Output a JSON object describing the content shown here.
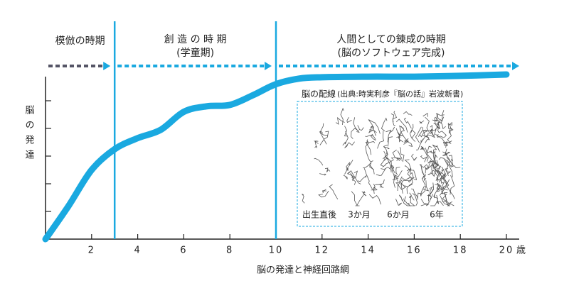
{
  "chart_data": {
    "type": "line",
    "x_label": "脳の発達と神経回路網",
    "y_label": "脳の発達",
    "x_unit": "歳",
    "x": [
      0,
      1,
      2,
      3,
      4,
      5,
      6,
      7,
      8,
      9,
      10,
      11,
      12,
      14,
      16,
      18,
      20
    ],
    "series": [
      {
        "color": "#1aa9e0",
        "values": [
          0,
          1.2,
          2.5,
          3.25,
          3.65,
          3.95,
          4.6,
          4.8,
          4.85,
          5.2,
          5.6,
          5.8,
          5.85,
          5.87,
          5.87,
          5.9,
          5.95
        ]
      }
    ],
    "xlim": [
      0,
      20
    ],
    "xticks": [
      2,
      4,
      6,
      8,
      10,
      12,
      14,
      16,
      18,
      20
    ],
    "ylim": [
      0,
      6
    ],
    "yticks": [
      1,
      2,
      3,
      4,
      5
    ],
    "phases": [
      {
        "label": "模倣の時期",
        "start": 0,
        "end": 3
      },
      {
        "label": "創 造 の 時 期",
        "sublabel": "(学童期)",
        "start": 3,
        "end": 10
      },
      {
        "label": "人間としての錬成の時期",
        "sublabel": "(脳のソフトウェア完成)",
        "start": 10,
        "end": 20
      }
    ],
    "inset": {
      "title": "脳の配線",
      "source": "(出典:時実利彦『脳の話』岩波新書)",
      "panels": [
        "出生直後",
        "3か月",
        "6か月",
        "6年"
      ]
    }
  }
}
